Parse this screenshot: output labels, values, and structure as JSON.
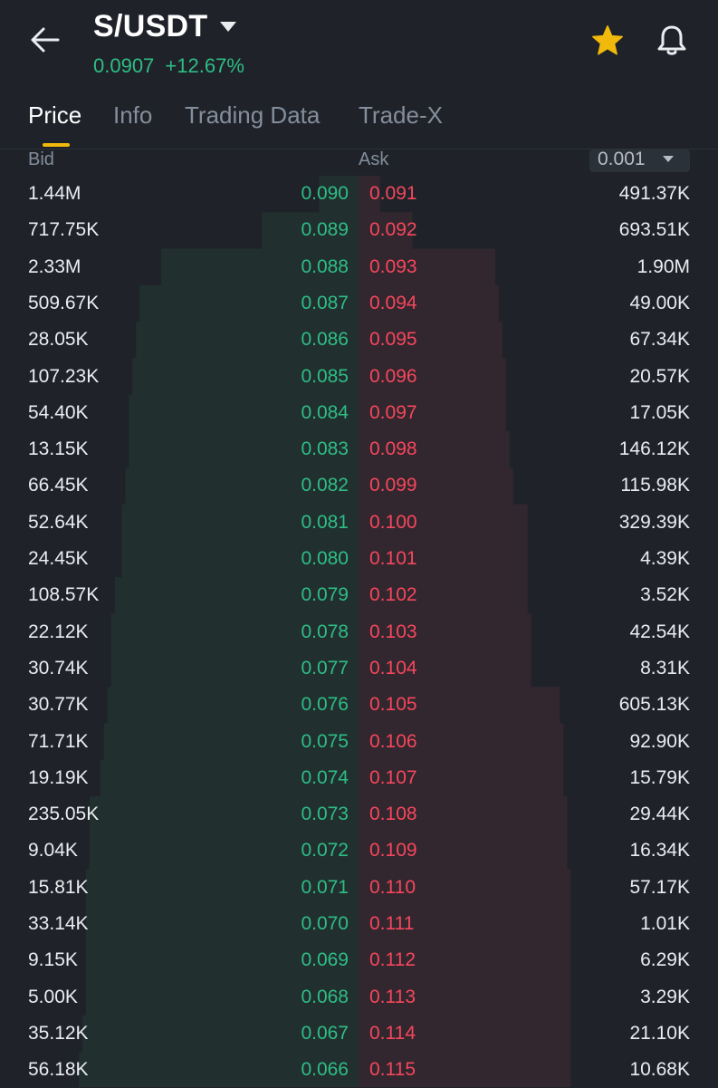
{
  "header": {
    "pair": "S/USDT",
    "last_price": "0.0907",
    "change": "+12.67%",
    "icons": [
      "arrow-left-icon",
      "caret-down-icon",
      "star-icon",
      "bell-icon"
    ],
    "colors": {
      "up": "#2ebd85",
      "down": "#f6465d",
      "accent": "#f0b90b"
    }
  },
  "tabs": [
    {
      "label": "Price",
      "active": true
    },
    {
      "label": "Info",
      "active": false
    },
    {
      "label": "Trading Data",
      "active": false
    },
    {
      "label": "Trade-X",
      "active": false
    }
  ],
  "orderbook": {
    "bid_label": "Bid",
    "ask_label": "Ask",
    "precision": "0.001",
    "rows": [
      {
        "bid_qty": "1.44M",
        "bid_price": "0.090",
        "ask_price": "0.091",
        "ask_qty": "491.37K",
        "bid_depth": 0.11,
        "ask_depth": 0.06
      },
      {
        "bid_qty": "717.75K",
        "bid_price": "0.089",
        "ask_price": "0.092",
        "ask_qty": "693.51K",
        "bid_depth": 0.27,
        "ask_depth": 0.15
      },
      {
        "bid_qty": "2.33M",
        "bid_price": "0.088",
        "ask_price": "0.093",
        "ask_qty": "1.90M",
        "bid_depth": 0.55,
        "ask_depth": 0.38
      },
      {
        "bid_qty": "509.67K",
        "bid_price": "0.087",
        "ask_price": "0.094",
        "ask_qty": "49.00K",
        "bid_depth": 0.61,
        "ask_depth": 0.39
      },
      {
        "bid_qty": "28.05K",
        "bid_price": "0.086",
        "ask_price": "0.095",
        "ask_qty": "67.34K",
        "bid_depth": 0.62,
        "ask_depth": 0.4
      },
      {
        "bid_qty": "107.23K",
        "bid_price": "0.085",
        "ask_price": "0.096",
        "ask_qty": "20.57K",
        "bid_depth": 0.63,
        "ask_depth": 0.41
      },
      {
        "bid_qty": "54.40K",
        "bid_price": "0.084",
        "ask_price": "0.097",
        "ask_qty": "17.05K",
        "bid_depth": 0.64,
        "ask_depth": 0.41
      },
      {
        "bid_qty": "13.15K",
        "bid_price": "0.083",
        "ask_price": "0.098",
        "ask_qty": "146.12K",
        "bid_depth": 0.64,
        "ask_depth": 0.42
      },
      {
        "bid_qty": "66.45K",
        "bid_price": "0.082",
        "ask_price": "0.099",
        "ask_qty": "115.98K",
        "bid_depth": 0.65,
        "ask_depth": 0.43
      },
      {
        "bid_qty": "52.64K",
        "bid_price": "0.081",
        "ask_price": "0.100",
        "ask_qty": "329.39K",
        "bid_depth": 0.66,
        "ask_depth": 0.47
      },
      {
        "bid_qty": "24.45K",
        "bid_price": "0.080",
        "ask_price": "0.101",
        "ask_qty": "4.39K",
        "bid_depth": 0.66,
        "ask_depth": 0.47
      },
      {
        "bid_qty": "108.57K",
        "bid_price": "0.079",
        "ask_price": "0.102",
        "ask_qty": "3.52K",
        "bid_depth": 0.68,
        "ask_depth": 0.47
      },
      {
        "bid_qty": "22.12K",
        "bid_price": "0.078",
        "ask_price": "0.103",
        "ask_qty": "42.54K",
        "bid_depth": 0.69,
        "ask_depth": 0.48
      },
      {
        "bid_qty": "30.74K",
        "bid_price": "0.077",
        "ask_price": "0.104",
        "ask_qty": "8.31K",
        "bid_depth": 0.69,
        "ask_depth": 0.48
      },
      {
        "bid_qty": "30.77K",
        "bid_price": "0.076",
        "ask_price": "0.105",
        "ask_qty": "605.13K",
        "bid_depth": 0.7,
        "ask_depth": 0.56
      },
      {
        "bid_qty": "71.71K",
        "bid_price": "0.075",
        "ask_price": "0.106",
        "ask_qty": "92.90K",
        "bid_depth": 0.71,
        "ask_depth": 0.57
      },
      {
        "bid_qty": "19.19K",
        "bid_price": "0.074",
        "ask_price": "0.107",
        "ask_qty": "15.79K",
        "bid_depth": 0.72,
        "ask_depth": 0.57
      },
      {
        "bid_qty": "235.05K",
        "bid_price": "0.073",
        "ask_price": "0.108",
        "ask_qty": "29.44K",
        "bid_depth": 0.75,
        "ask_depth": 0.58
      },
      {
        "bid_qty": "9.04K",
        "bid_price": "0.072",
        "ask_price": "0.109",
        "ask_qty": "16.34K",
        "bid_depth": 0.75,
        "ask_depth": 0.58
      },
      {
        "bid_qty": "15.81K",
        "bid_price": "0.071",
        "ask_price": "0.110",
        "ask_qty": "57.17K",
        "bid_depth": 0.76,
        "ask_depth": 0.59
      },
      {
        "bid_qty": "33.14K",
        "bid_price": "0.070",
        "ask_price": "0.111",
        "ask_qty": "1.01K",
        "bid_depth": 0.76,
        "ask_depth": 0.59
      },
      {
        "bid_qty": "9.15K",
        "bid_price": "0.069",
        "ask_price": "0.112",
        "ask_qty": "6.29K",
        "bid_depth": 0.76,
        "ask_depth": 0.59
      },
      {
        "bid_qty": "5.00K",
        "bid_price": "0.068",
        "ask_price": "0.113",
        "ask_qty": "3.29K",
        "bid_depth": 0.76,
        "ask_depth": 0.59
      },
      {
        "bid_qty": "35.12K",
        "bid_price": "0.067",
        "ask_price": "0.114",
        "ask_qty": "21.10K",
        "bid_depth": 0.77,
        "ask_depth": 0.59
      },
      {
        "bid_qty": "56.18K",
        "bid_price": "0.066",
        "ask_price": "0.115",
        "ask_qty": "10.68K",
        "bid_depth": 0.78,
        "ask_depth": 0.59
      }
    ]
  }
}
